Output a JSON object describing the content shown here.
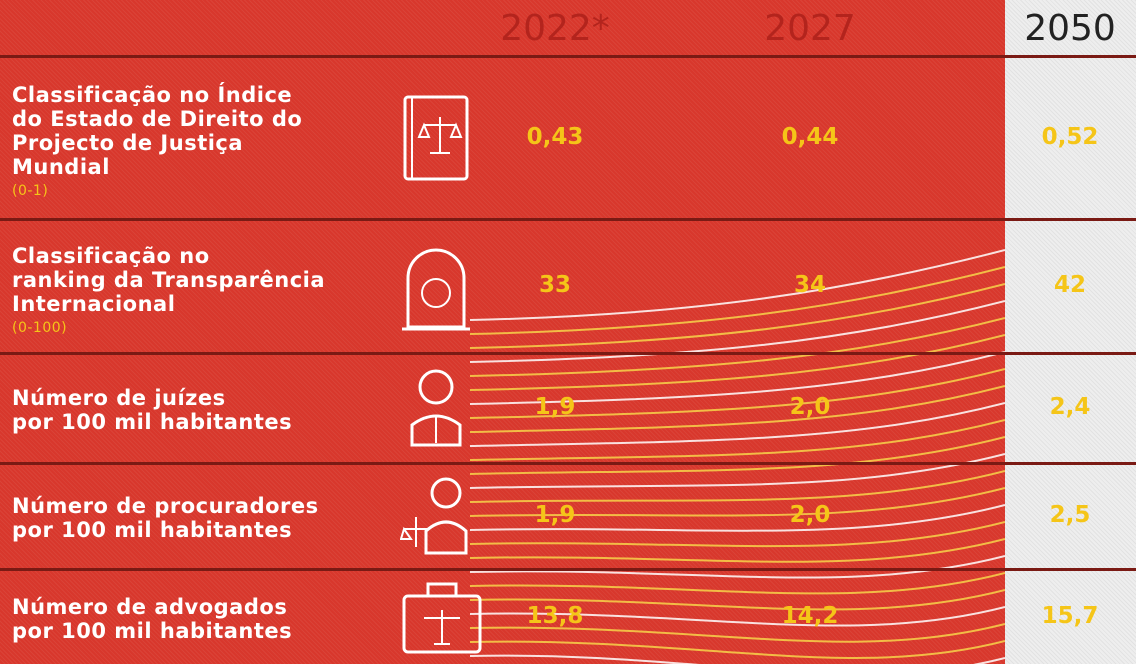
{
  "table": {
    "header": [
      "2022*",
      "2027",
      "2050"
    ],
    "rows": [
      {
        "label": [
          "Classificação no Índice",
          "do Estado de Direito do",
          "Projecto de Justiça",
          "Mundial"
        ],
        "scale": "(0-1)",
        "values": [
          "0,43",
          "0,44",
          "0,52"
        ]
      },
      {
        "label": [
          "Classificação no",
          "ranking da Transparência",
          "Internacional"
        ],
        "scale": "(0-100)",
        "values": [
          "33",
          "34",
          "42"
        ]
      },
      {
        "label": [
          "Número de juízes",
          "por 100 mil habitantes"
        ],
        "values": [
          "1,9",
          "2,0",
          "2,4"
        ]
      },
      {
        "label": [
          "Número de procuradores",
          "por 100 mil habitantes"
        ],
        "values": [
          "1,9",
          "2,0",
          "2,5"
        ]
      },
      {
        "label": [
          "Número de advogados",
          "por 100 mil habitantes"
        ],
        "values": [
          "13,8",
          "14,2",
          "15,7"
        ]
      }
    ]
  }
}
